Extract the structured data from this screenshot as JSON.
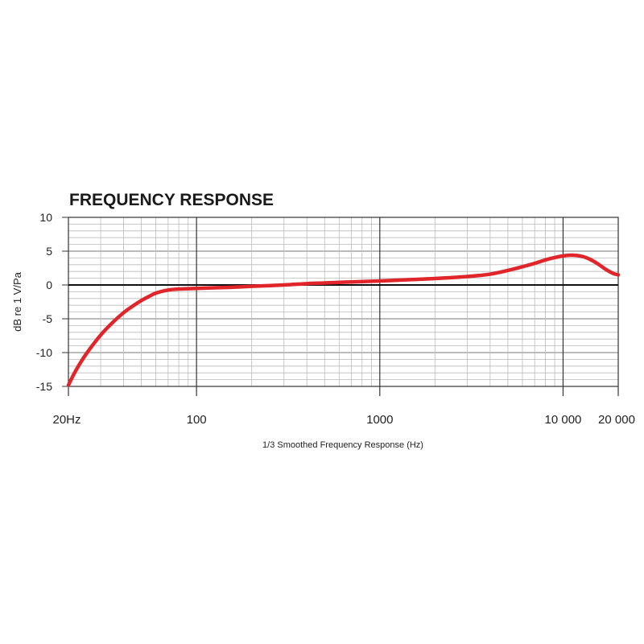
{
  "chart_data": {
    "type": "line",
    "title": "FREQUENCY RESPONSE",
    "xlabel": "1/3 Smoothed Frequency Response (Hz)",
    "ylabel": "dB re 1 V/Pa",
    "x_scale": "log",
    "xlim": [
      20,
      20000
    ],
    "ylim": [
      -15,
      10
    ],
    "x_ticks": [
      {
        "value": 20,
        "label": "20Hz"
      },
      {
        "value": 100,
        "label": "100"
      },
      {
        "value": 1000,
        "label": "1000"
      },
      {
        "value": 10000,
        "label": "10 000"
      },
      {
        "value": 20000,
        "label": "20 000"
      }
    ],
    "y_ticks": [
      {
        "value": 10,
        "label": "10"
      },
      {
        "value": 5,
        "label": "5"
      },
      {
        "value": 0,
        "label": "0"
      },
      {
        "value": -5,
        "label": "-5"
      },
      {
        "value": -10,
        "label": "-10"
      },
      {
        "value": -15,
        "label": "-15"
      }
    ],
    "grid": true,
    "series": [
      {
        "color": "#e0262a",
        "x": [
          20,
          22,
          25,
          30,
          35,
          40,
          45,
          50,
          55,
          60,
          70,
          80,
          90,
          100,
          150,
          200,
          300,
          400,
          500,
          700,
          1000,
          1500,
          2000,
          3000,
          4000,
          5000,
          6000,
          7000,
          8000,
          9000,
          10000,
          11000,
          12000,
          13000,
          14000,
          15000,
          16000,
          17000,
          18000,
          19000,
          20000
        ],
        "y": [
          -14.8,
          -12.6,
          -10.2,
          -7.4,
          -5.5,
          -4.1,
          -3.1,
          -2.3,
          -1.7,
          -1.2,
          -0.75,
          -0.6,
          -0.55,
          -0.5,
          -0.35,
          -0.2,
          0.0,
          0.2,
          0.3,
          0.45,
          0.6,
          0.8,
          0.95,
          1.25,
          1.6,
          2.15,
          2.7,
          3.2,
          3.7,
          4.05,
          4.3,
          4.4,
          4.35,
          4.15,
          3.8,
          3.35,
          2.85,
          2.35,
          1.95,
          1.65,
          1.5
        ]
      }
    ]
  }
}
